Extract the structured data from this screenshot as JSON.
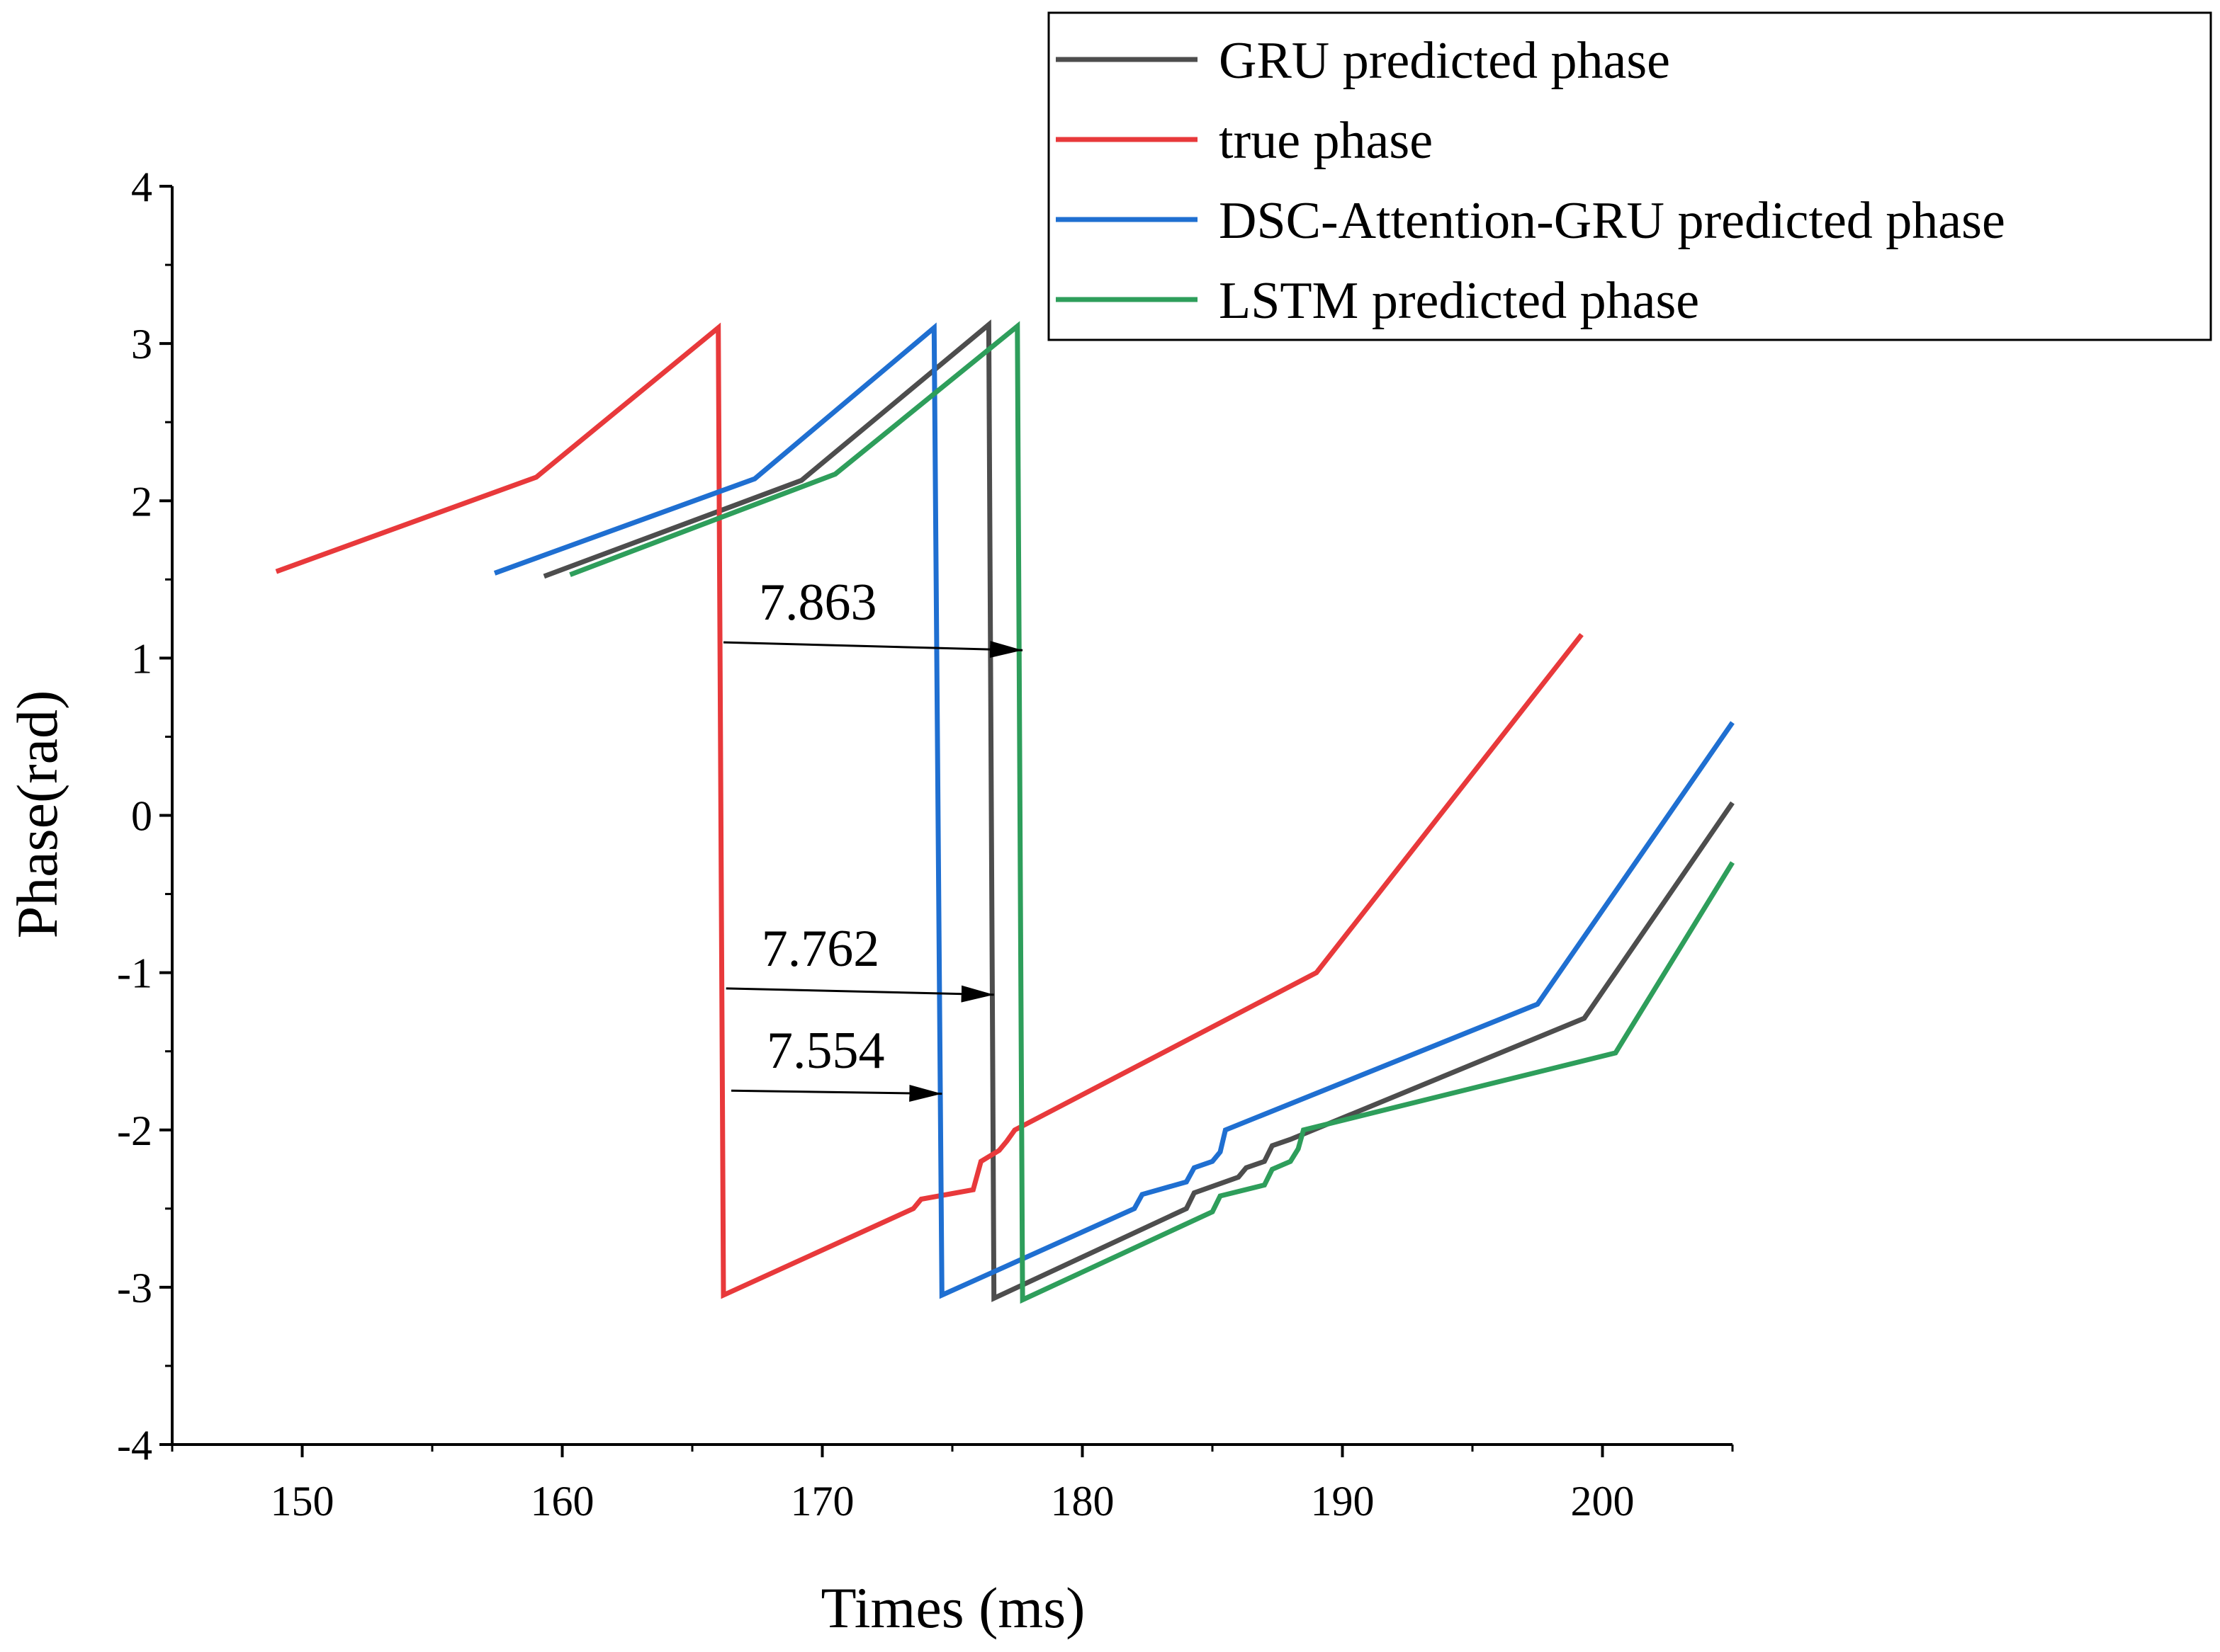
{
  "chart_data": {
    "type": "line",
    "title": "",
    "xlabel": "Times (ms)",
    "ylabel": "Phase(rad)",
    "xlim": [
      145,
      205
    ],
    "ylim": [
      -4,
      4
    ],
    "xticks": [
      150,
      160,
      170,
      180,
      190,
      200
    ],
    "yticks": [
      -4,
      -3,
      -2,
      -1,
      0,
      1,
      2,
      3,
      4
    ],
    "grid": false,
    "legend_position": "top-right",
    "series": [
      {
        "name": "GRU predicted phase",
        "color": "#4d4d4d",
        "x": [
          159.3,
          169.2,
          176.4,
          176.6,
          184.0,
          184.3,
          186.0,
          186.3,
          187.0,
          187.3,
          188.0,
          199.3,
          205.0
        ],
        "y": [
          1.52,
          2.13,
          3.12,
          -3.07,
          -2.5,
          -2.4,
          -2.3,
          -2.24,
          -2.2,
          -2.1,
          -2.06,
          -1.29,
          0.08
        ]
      },
      {
        "name": "true phase",
        "color": "#e8393b",
        "x": [
          149.0,
          159.0,
          166.0,
          166.2,
          173.5,
          173.8,
          175.8,
          176.1,
          176.8,
          177.1,
          177.4,
          189.0,
          199.2
        ],
        "y": [
          1.55,
          2.15,
          3.1,
          -3.05,
          -2.5,
          -2.44,
          -2.38,
          -2.2,
          -2.13,
          -2.07,
          -2.0,
          -1.0,
          1.15
        ]
      },
      {
        "name": "DSC-Attention-GRU predicted phase",
        "color": "#1f6fd1",
        "x": [
          157.4,
          167.4,
          174.3,
          174.6,
          182.0,
          182.3,
          184.0,
          184.3,
          185.0,
          185.3,
          185.5,
          197.5,
          205.0
        ],
        "y": [
          1.54,
          2.14,
          3.1,
          -3.05,
          -2.5,
          -2.41,
          -2.33,
          -2.24,
          -2.2,
          -2.14,
          -2.0,
          -1.2,
          0.59
        ]
      },
      {
        "name": "LSTM predicted phase",
        "color": "#2e9e5b",
        "x": [
          160.3,
          170.5,
          177.5,
          177.7,
          185.0,
          185.3,
          187.0,
          187.3,
          188.0,
          188.3,
          188.5,
          200.5,
          205.0
        ],
        "y": [
          1.53,
          2.17,
          3.11,
          -3.08,
          -2.52,
          -2.42,
          -2.35,
          -2.25,
          -2.2,
          -2.12,
          -2.0,
          -1.51,
          -0.3
        ]
      }
    ],
    "annotations": [
      {
        "text": "7.863",
        "x_from": 166.2,
        "x_to": 177.7,
        "y_start": 1.1,
        "y_end": 1.05
      },
      {
        "text": "7.762",
        "x_from": 166.3,
        "x_to": 176.6,
        "y_start": -1.1,
        "y_end": -1.14
      },
      {
        "text": "7.554",
        "x_from": 166.5,
        "x_to": 174.6,
        "y_start": -1.75,
        "y_end": -1.77
      }
    ]
  }
}
